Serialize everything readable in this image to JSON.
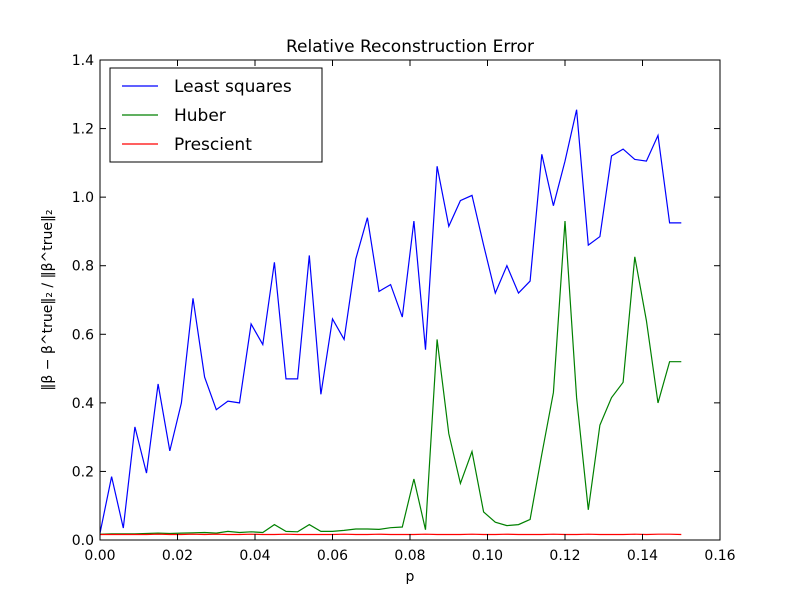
{
  "chart_data": {
    "type": "line",
    "title": "Relative Reconstruction Error",
    "xlabel": "p",
    "ylabel": "‖β − β^true‖₂ / ‖β^true‖₂",
    "xlim": [
      0.0,
      0.16
    ],
    "ylim": [
      0.0,
      1.4
    ],
    "xticks": [
      "0.00",
      "0.02",
      "0.04",
      "0.06",
      "0.08",
      "0.10",
      "0.12",
      "0.14",
      "0.16"
    ],
    "yticks": [
      "0.0",
      "0.2",
      "0.4",
      "0.6",
      "0.8",
      "1.0",
      "1.2",
      "1.4"
    ],
    "grid": false,
    "legend_position": "upper-left",
    "x": [
      0.0,
      0.003,
      0.006,
      0.009,
      0.012,
      0.015,
      0.018,
      0.021,
      0.024,
      0.027,
      0.03,
      0.033,
      0.036,
      0.039,
      0.042,
      0.045,
      0.048,
      0.051,
      0.054,
      0.057,
      0.06,
      0.063,
      0.066,
      0.069,
      0.072,
      0.075,
      0.078,
      0.081,
      0.084,
      0.087,
      0.09,
      0.093,
      0.096,
      0.099,
      0.102,
      0.105,
      0.108,
      0.111,
      0.114,
      0.117,
      0.12,
      0.123,
      0.126,
      0.129,
      0.132,
      0.135,
      0.138,
      0.141,
      0.144,
      0.147,
      0.15
    ],
    "series": [
      {
        "name": "Least squares",
        "color": "#0000ff",
        "values": [
          0.02,
          0.185,
          0.035,
          0.33,
          0.195,
          0.455,
          0.26,
          0.4,
          0.705,
          0.475,
          0.38,
          0.405,
          0.4,
          0.63,
          0.57,
          0.81,
          0.47,
          0.47,
          0.83,
          0.425,
          0.645,
          0.585,
          0.82,
          0.94,
          0.725,
          0.745,
          0.65,
          0.93,
          0.555,
          1.09,
          0.915,
          0.99,
          1.005,
          0.86,
          0.72,
          0.8,
          0.72,
          0.755,
          1.125,
          0.975,
          1.105,
          1.255,
          0.86,
          0.885,
          1.12,
          1.14,
          1.11,
          1.105,
          1.18,
          0.925,
          0.925
        ]
      },
      {
        "name": "Huber",
        "color": "#008000",
        "values": [
          0.017,
          0.018,
          0.018,
          0.018,
          0.019,
          0.02,
          0.019,
          0.02,
          0.021,
          0.022,
          0.02,
          0.025,
          0.022,
          0.024,
          0.022,
          0.045,
          0.025,
          0.024,
          0.045,
          0.025,
          0.025,
          0.028,
          0.032,
          0.032,
          0.031,
          0.036,
          0.038,
          0.178,
          0.03,
          0.585,
          0.31,
          0.165,
          0.258,
          0.082,
          0.052,
          0.042,
          0.045,
          0.06,
          0.25,
          0.43,
          0.93,
          0.415,
          0.088,
          0.335,
          0.415,
          0.46,
          0.826,
          0.64,
          0.4,
          0.52,
          0.52
        ]
      },
      {
        "name": "Prescient",
        "color": "#ff0000",
        "values": [
          0.016,
          0.016,
          0.016,
          0.016,
          0.016,
          0.017,
          0.016,
          0.016,
          0.017,
          0.016,
          0.017,
          0.016,
          0.016,
          0.017,
          0.016,
          0.016,
          0.017,
          0.016,
          0.016,
          0.016,
          0.016,
          0.017,
          0.016,
          0.016,
          0.017,
          0.016,
          0.016,
          0.016,
          0.017,
          0.016,
          0.016,
          0.016,
          0.017,
          0.016,
          0.016,
          0.017,
          0.016,
          0.016,
          0.016,
          0.017,
          0.016,
          0.016,
          0.017,
          0.016,
          0.016,
          0.016,
          0.017,
          0.016,
          0.017,
          0.017,
          0.016
        ]
      }
    ]
  }
}
